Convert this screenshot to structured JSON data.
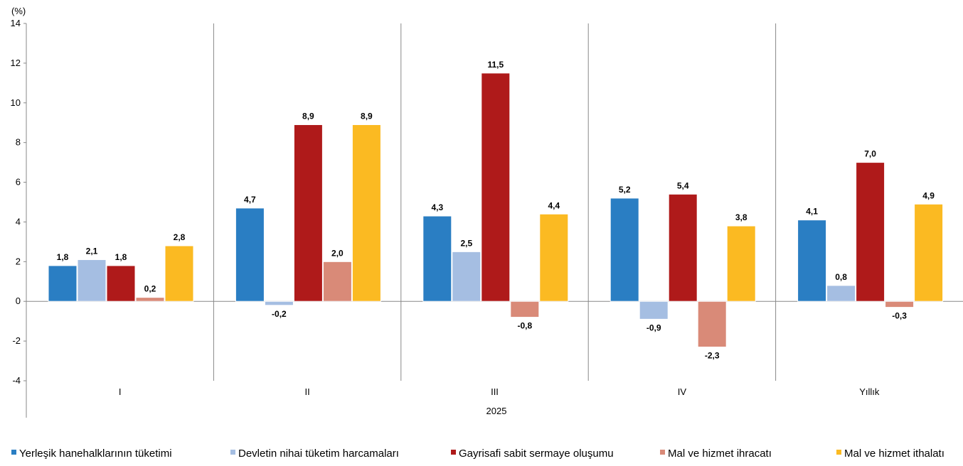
{
  "chart_data": {
    "type": "bar",
    "unit_label": "(%)",
    "categories": [
      "I",
      "II",
      "III",
      "IV",
      "Yıllık"
    ],
    "group_label": "2025",
    "ylim": [
      -4,
      14
    ],
    "yticks": [
      -4,
      -2,
      0,
      2,
      4,
      6,
      8,
      10,
      12,
      14
    ],
    "grid": false,
    "legend_position": "bottom",
    "series": [
      {
        "name": "Yerleşik hanehalklarının tüketimi",
        "color": "#2A7EC3",
        "values": [
          1.8,
          4.7,
          4.3,
          5.2,
          4.1
        ],
        "labels": [
          "1,8",
          "4,7",
          "4,3",
          "5,2",
          "4,1"
        ]
      },
      {
        "name": "Devletin nihai tüketim harcamaları",
        "color": "#A5BEE2",
        "values": [
          2.1,
          -0.2,
          2.5,
          -0.9,
          0.8
        ],
        "labels": [
          "2,1",
          "-0,2",
          "2,5",
          "-0,9",
          "0,8"
        ]
      },
      {
        "name": "Gayrisafi sabit sermaye oluşumu",
        "color": "#AF1A1A",
        "values": [
          1.8,
          8.9,
          11.5,
          5.4,
          7.0
        ],
        "labels": [
          "1,8",
          "8,9",
          "11,5",
          "5,4",
          "7,0"
        ]
      },
      {
        "name": "Mal ve hizmet ihracatı",
        "color": "#D98A78",
        "values": [
          0.2,
          2.0,
          -0.8,
          -2.3,
          -0.3
        ],
        "labels": [
          "0,2",
          "2,0",
          "-0,8",
          "-2,3",
          "-0,3"
        ]
      },
      {
        "name": "Mal ve hizmet ithalatı",
        "color": "#FBBA22",
        "values": [
          2.8,
          8.9,
          4.4,
          3.8,
          4.9
        ],
        "labels": [
          "2,8",
          "8,9",
          "4,4",
          "3,8",
          "4,9"
        ]
      }
    ]
  }
}
